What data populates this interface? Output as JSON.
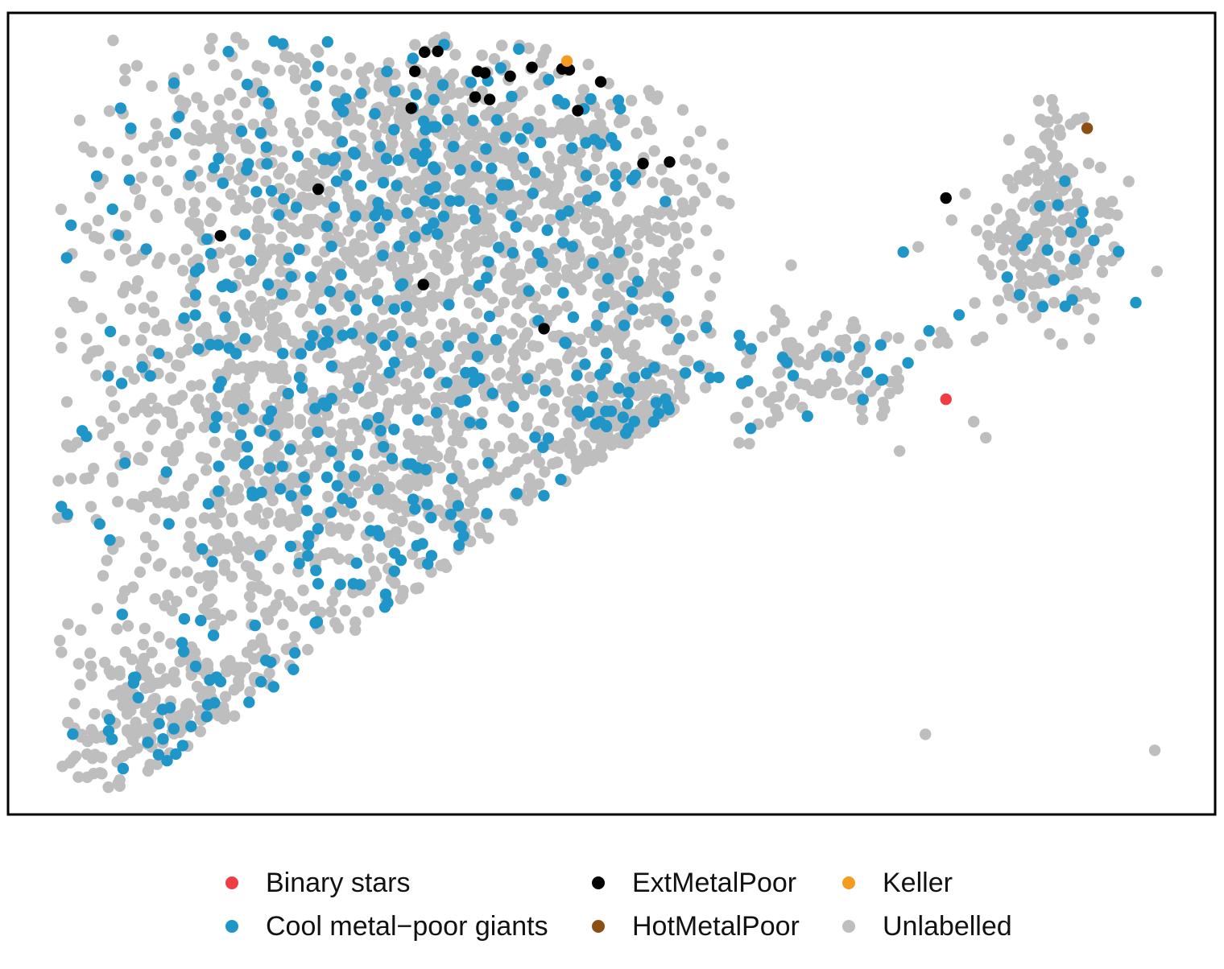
{
  "chart_data": {
    "type": "scatter",
    "title": "",
    "xlabel": "",
    "ylabel": "",
    "axes_visible": false,
    "grid": false,
    "legend_position": "bottom",
    "xlim": [
      0,
      100
    ],
    "ylim": [
      0,
      100
    ],
    "series": [
      {
        "name": "Unlabelled",
        "color": "#BEBEBE",
        "generated": true,
        "approx_count": 2800,
        "clusters": [
          {
            "cx": 30,
            "cy": 55,
            "sx": 14,
            "sy": 24,
            "n": 1700
          },
          {
            "cx": 38,
            "cy": 82,
            "sx": 10,
            "sy": 7,
            "n": 360
          },
          {
            "cx": 15,
            "cy": 12,
            "sx": 5,
            "sy": 5,
            "n": 180
          },
          {
            "cx": 53,
            "cy": 44,
            "sx": 3,
            "sy": 6,
            "n": 140
          },
          {
            "cx": 52,
            "cy": 68,
            "sx": 3,
            "sy": 4,
            "n": 90
          },
          {
            "cx": 69,
            "cy": 56,
            "sx": 5,
            "sy": 4,
            "n": 90
          },
          {
            "cx": 86,
            "cy": 71,
            "sx": 3,
            "sy": 5,
            "n": 160
          },
          {
            "cx": 86.5,
            "cy": 82,
            "sx": 1.2,
            "sy": 4,
            "n": 40
          }
        ],
        "outliers": [
          {
            "x": 76,
            "y": 10
          },
          {
            "x": 95,
            "y": 8
          },
          {
            "x": 4.5,
            "y": 6
          },
          {
            "x": 7,
            "y": 7
          },
          {
            "x": 80,
            "y": 49
          },
          {
            "x": 81,
            "y": 47
          }
        ]
      },
      {
        "name": "Cool metal−poor giants",
        "color": "#1F95C8",
        "generated": true,
        "approx_count": 500,
        "clusters": [
          {
            "cx": 30,
            "cy": 55,
            "sx": 14,
            "sy": 24,
            "n": 330
          },
          {
            "cx": 38,
            "cy": 82,
            "sx": 10,
            "sy": 7,
            "n": 70
          },
          {
            "cx": 15,
            "cy": 12,
            "sx": 5,
            "sy": 5,
            "n": 30
          },
          {
            "cx": 53,
            "cy": 44,
            "sx": 3,
            "sy": 6,
            "n": 25
          },
          {
            "cx": 69,
            "cy": 56,
            "sx": 5,
            "sy": 4,
            "n": 18
          },
          {
            "cx": 86,
            "cy": 71,
            "sx": 3,
            "sy": 5,
            "n": 20
          }
        ]
      },
      {
        "name": "ExtMetalPoor",
        "color": "#000000",
        "points": [
          [
            34.5,
            95.1
          ],
          [
            35.6,
            95.2
          ],
          [
            33.7,
            92.7
          ],
          [
            38.9,
            92.7
          ],
          [
            39.5,
            92.5
          ],
          [
            41.6,
            92.1
          ],
          [
            43.4,
            93.2
          ],
          [
            45.9,
            93.0
          ],
          [
            46.5,
            92.9
          ],
          [
            49.1,
            91.4
          ],
          [
            33.4,
            88.1
          ],
          [
            38.7,
            89.5
          ],
          [
            39.9,
            89.2
          ],
          [
            47.2,
            87.8
          ],
          [
            52.6,
            81.2
          ],
          [
            54.8,
            81.4
          ],
          [
            25.7,
            78.0
          ],
          [
            17.6,
            72.2
          ],
          [
            34.4,
            66.1
          ],
          [
            44.4,
            60.6
          ],
          [
            77.7,
            76.9
          ]
        ]
      },
      {
        "name": "Keller",
        "color": "#F39C20",
        "points": [
          [
            46.3,
            94.0
          ]
        ]
      },
      {
        "name": "HotMetalPoor",
        "color": "#8B4F14",
        "points": [
          [
            89.4,
            85.6
          ]
        ]
      },
      {
        "name": "Binary stars",
        "color": "#F03C43",
        "points": [
          [
            77.7,
            51.8
          ]
        ]
      }
    ],
    "legend": {
      "items": [
        {
          "label": "Binary stars",
          "color": "#F03C43"
        },
        {
          "label": "ExtMetalPoor",
          "color": "#000000"
        },
        {
          "label": "Keller",
          "color": "#F39C20"
        },
        {
          "label": "Cool metal−poor giants",
          "color": "#1F95C8"
        },
        {
          "label": "HotMetalPoor",
          "color": "#8B4F14"
        },
        {
          "label": "Unlabelled",
          "color": "#BEBEBE"
        }
      ]
    }
  }
}
